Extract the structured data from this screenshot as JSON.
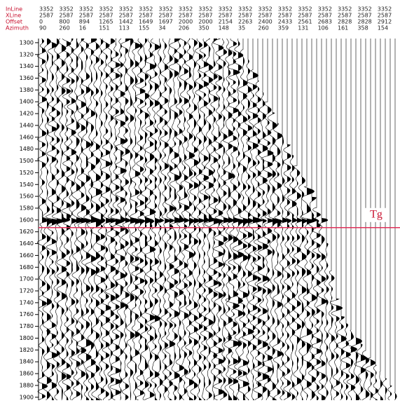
{
  "header": {
    "row_labels": [
      "InLine",
      "XLine",
      "Offset",
      "Azimuth"
    ],
    "rows": [
      [
        3352,
        3352,
        3352,
        3352,
        3352,
        3352,
        3352,
        3352,
        3352,
        3352,
        3352,
        3352,
        3352,
        3352,
        3352,
        3352,
        3352,
        3352
      ],
      [
        2587,
        2587,
        2587,
        2587,
        2587,
        2587,
        2587,
        2587,
        2587,
        2587,
        2587,
        2587,
        2587,
        2587,
        2587,
        2587,
        2587,
        2587
      ],
      [
        0,
        800,
        894,
        1265,
        1442,
        1649,
        1697,
        2000,
        2000,
        2154,
        2263,
        2400,
        2433,
        2561,
        2683,
        2828,
        2828,
        2912
      ],
      [
        90,
        260,
        16,
        151,
        113,
        155,
        34,
        206,
        350,
        148,
        35,
        260,
        359,
        131,
        106,
        161,
        358,
        154
      ]
    ]
  },
  "time_axis": {
    "range": [
      1293,
      1905
    ],
    "ticks": [
      1300,
      1320,
      1340,
      1360,
      1380,
      1400,
      1420,
      1440,
      1460,
      1480,
      1500,
      1520,
      1540,
      1560,
      1580,
      1600,
      1620,
      1640,
      1660,
      1680,
      1700,
      1720,
      1740,
      1760,
      1780,
      1800,
      1820,
      1840,
      1860,
      1880,
      1900
    ]
  },
  "horizon": {
    "label": "Tg",
    "time": 1613
  }
}
